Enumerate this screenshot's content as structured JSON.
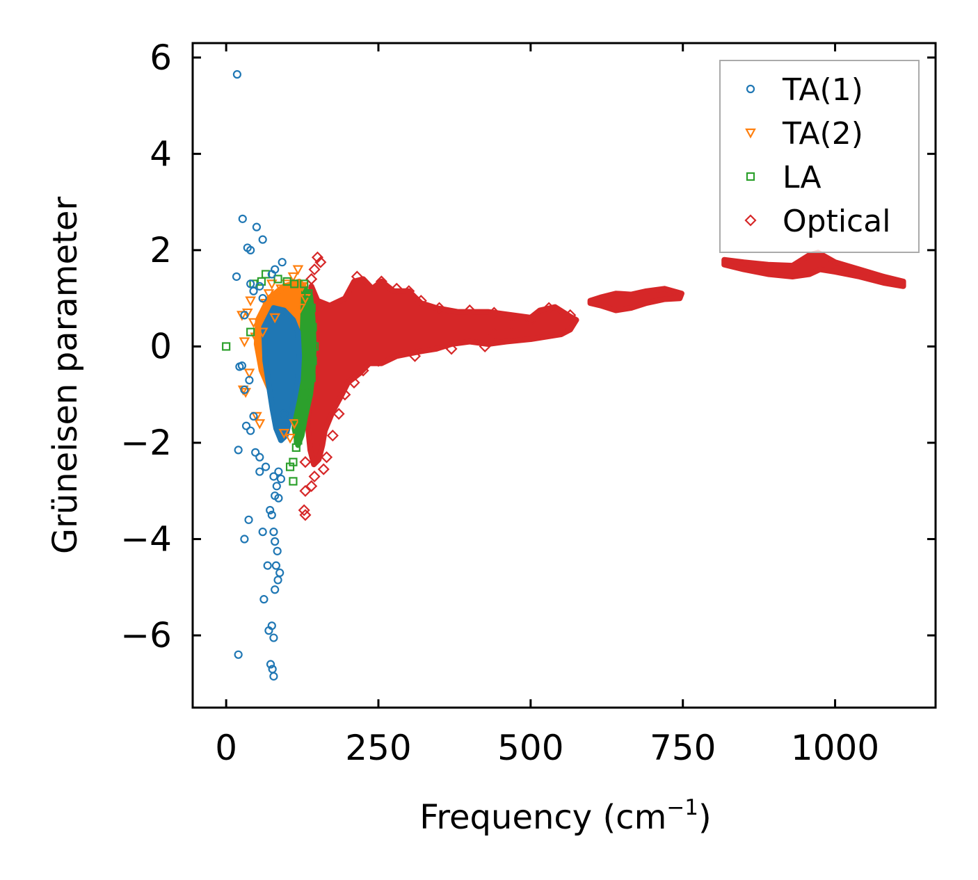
{
  "chart_data": {
    "type": "scatter",
    "title": "",
    "xlabel": "Frequency (cm",
    "xlabel_sup": "−1",
    "xlabel_close": ")",
    "ylabel": "Grüneisen parameter",
    "xlim": [
      -55,
      1165
    ],
    "ylim": [
      -7.5,
      6.3
    ],
    "xticks": [
      0,
      250,
      500,
      750,
      1000
    ],
    "yticks": [
      -6,
      -4,
      -2,
      0,
      2,
      4,
      6
    ],
    "xtick_labels": [
      "0",
      "250",
      "500",
      "750",
      "1000"
    ],
    "ytick_labels": [
      "−6",
      "−4",
      "−2",
      "0",
      "2",
      "4",
      "6"
    ],
    "grid": false,
    "legend_position": "top-right",
    "series": [
      {
        "name": "TA(1)",
        "marker": "circle",
        "color": "#1f77b4",
        "points": [
          [
            18,
            5.65
          ],
          [
            20,
            -6.4
          ],
          [
            27,
            2.65
          ],
          [
            35,
            2.05
          ],
          [
            40,
            2.0
          ],
          [
            50,
            2.48
          ],
          [
            60,
            2.22
          ],
          [
            17,
            1.45
          ],
          [
            22,
            -0.42
          ],
          [
            20,
            -2.15
          ],
          [
            33,
            -1.65
          ],
          [
            37,
            -3.6
          ],
          [
            30,
            -4.0
          ],
          [
            60,
            -3.85
          ],
          [
            62,
            -5.25
          ],
          [
            68,
            -4.55
          ],
          [
            70,
            -5.9
          ],
          [
            75,
            -5.8
          ],
          [
            78,
            -6.05
          ],
          [
            73,
            -6.6
          ],
          [
            76,
            -6.7
          ],
          [
            78,
            -6.85
          ],
          [
            80,
            -5.05
          ],
          [
            85,
            -4.85
          ],
          [
            88,
            -4.7
          ],
          [
            82,
            -4.55
          ],
          [
            84,
            -4.25
          ],
          [
            80,
            -4.05
          ],
          [
            78,
            -3.85
          ],
          [
            75,
            -3.5
          ],
          [
            72,
            -3.4
          ],
          [
            80,
            -3.1
          ],
          [
            86,
            -3.15
          ],
          [
            83,
            -2.9
          ],
          [
            78,
            -2.7
          ],
          [
            86,
            -2.6
          ],
          [
            90,
            -2.75
          ],
          [
            65,
            -2.5
          ],
          [
            55,
            -2.6
          ],
          [
            48,
            -2.2
          ],
          [
            55,
            -2.3
          ],
          [
            95,
            -1.4
          ],
          [
            92,
            1.75
          ],
          [
            80,
            1.6
          ],
          [
            75,
            1.5
          ],
          [
            40,
            1.3
          ],
          [
            45,
            1.15
          ],
          [
            55,
            1.25
          ],
          [
            60,
            1.0
          ],
          [
            30,
            0.65
          ],
          [
            26,
            -0.4
          ],
          [
            40,
            -1.75
          ],
          [
            30,
            -0.9
          ],
          [
            38,
            -0.7
          ],
          [
            45,
            -1.45
          ]
        ]
      },
      {
        "name": "TA(2)",
        "marker": "triangle-down",
        "color": "#ff7f0e",
        "points": [
          [
            28,
            -0.9
          ],
          [
            32,
            -0.95
          ],
          [
            35,
            0.7
          ],
          [
            40,
            0.95
          ],
          [
            45,
            0.5
          ],
          [
            38,
            -0.55
          ],
          [
            50,
            -1.45
          ],
          [
            55,
            -1.6
          ],
          [
            60,
            0.3
          ],
          [
            65,
            0.9
          ],
          [
            70,
            1.1
          ],
          [
            75,
            1.3
          ],
          [
            80,
            0.6
          ],
          [
            90,
            1.2
          ],
          [
            100,
            1.3
          ],
          [
            110,
            1.45
          ],
          [
            118,
            1.6
          ],
          [
            120,
            1.2
          ],
          [
            122,
            0.8
          ],
          [
            125,
            1.25
          ],
          [
            130,
            1.0
          ],
          [
            95,
            -1.8
          ],
          [
            105,
            -1.9
          ],
          [
            112,
            -1.6
          ],
          [
            30,
            0.1
          ],
          [
            26,
            0.65
          ],
          [
            48,
            0.2
          ]
        ]
      },
      {
        "name": "LA",
        "marker": "square",
        "color": "#2ca02c",
        "points": [
          [
            0,
            0.0
          ],
          [
            40,
            0.3
          ],
          [
            45,
            1.3
          ],
          [
            58,
            1.35
          ],
          [
            65,
            1.5
          ],
          [
            85,
            1.4
          ],
          [
            100,
            1.35
          ],
          [
            112,
            1.3
          ],
          [
            128,
            1.3
          ],
          [
            135,
            1.1
          ],
          [
            140,
            0.8
          ],
          [
            142,
            0.4
          ],
          [
            145,
            0.0
          ],
          [
            142,
            -0.3
          ],
          [
            140,
            -0.65
          ],
          [
            135,
            -0.95
          ],
          [
            130,
            -1.15
          ],
          [
            125,
            -1.5
          ],
          [
            120,
            -1.8
          ],
          [
            115,
            -2.1
          ],
          [
            110,
            -2.4
          ],
          [
            105,
            -2.5
          ],
          [
            110,
            -2.8
          ],
          [
            118,
            -1.95
          ],
          [
            128,
            -0.95
          ],
          [
            135,
            -0.2
          ]
        ]
      },
      {
        "name": "Optical",
        "marker": "diamond",
        "color": "#d62728",
        "points": [
          [
            150,
            1.85
          ],
          [
            155,
            1.75
          ],
          [
            145,
            1.6
          ],
          [
            140,
            1.4
          ],
          [
            130,
            -2.4
          ],
          [
            130,
            -3.0
          ],
          [
            140,
            -2.9
          ],
          [
            145,
            -2.7
          ],
          [
            128,
            -3.4
          ],
          [
            130,
            -3.5
          ],
          [
            160,
            -2.55
          ],
          [
            165,
            -2.3
          ],
          [
            175,
            -1.85
          ],
          [
            185,
            -1.4
          ],
          [
            195,
            -1.0
          ],
          [
            210,
            -0.75
          ],
          [
            225,
            -0.5
          ],
          [
            250,
            -0.3
          ],
          [
            310,
            -0.2
          ],
          [
            370,
            -0.05
          ],
          [
            425,
            0.0
          ],
          [
            440,
            0.25
          ],
          [
            215,
            1.45
          ],
          [
            255,
            1.35
          ],
          [
            280,
            1.2
          ],
          [
            300,
            1.15
          ],
          [
            320,
            0.95
          ],
          [
            350,
            0.8
          ],
          [
            400,
            0.75
          ],
          [
            440,
            0.7
          ],
          [
            530,
            0.8
          ],
          [
            565,
            0.65
          ],
          [
            500,
            0.55
          ],
          [
            470,
            0.45
          ]
        ]
      }
    ],
    "dense_regions": [
      {
        "series": "Optical",
        "outline": [
          [
            140,
            1.25
          ],
          [
            150,
            0.95
          ],
          [
            170,
            0.85
          ],
          [
            195,
            1.0
          ],
          [
            210,
            1.35
          ],
          [
            225,
            1.4
          ],
          [
            240,
            1.2
          ],
          [
            255,
            1.35
          ],
          [
            275,
            1.15
          ],
          [
            300,
            1.15
          ],
          [
            320,
            0.9
          ],
          [
            345,
            0.8
          ],
          [
            380,
            0.72
          ],
          [
            430,
            0.72
          ],
          [
            470,
            0.65
          ],
          [
            500,
            0.6
          ],
          [
            515,
            0.75
          ],
          [
            540,
            0.82
          ],
          [
            565,
            0.62
          ],
          [
            575,
            0.55
          ],
          [
            565,
            0.35
          ],
          [
            550,
            0.25
          ],
          [
            500,
            0.15
          ],
          [
            460,
            0.1
          ],
          [
            430,
            0.05
          ],
          [
            400,
            0.1
          ],
          [
            370,
            0.05
          ],
          [
            345,
            -0.05
          ],
          [
            320,
            -0.1
          ],
          [
            300,
            -0.15
          ],
          [
            280,
            -0.2
          ],
          [
            255,
            -0.35
          ],
          [
            235,
            -0.35
          ],
          [
            220,
            -0.55
          ],
          [
            200,
            -0.75
          ],
          [
            190,
            -1.0
          ],
          [
            175,
            -1.35
          ],
          [
            162,
            -1.75
          ],
          [
            158,
            -2.05
          ],
          [
            152,
            -2.35
          ],
          [
            144,
            -2.45
          ],
          [
            138,
            -2.15
          ],
          [
            134,
            -1.65
          ],
          [
            136,
            -0.95
          ],
          [
            133,
            -0.45
          ],
          [
            138,
            0.15
          ],
          [
            136,
            0.85
          ]
        ]
      },
      {
        "series": "Optical",
        "outline": [
          [
            598,
            0.95
          ],
          [
            615,
            1.02
          ],
          [
            640,
            1.1
          ],
          [
            665,
            1.08
          ],
          [
            690,
            1.15
          ],
          [
            720,
            1.2
          ],
          [
            748,
            1.1
          ],
          [
            745,
            1.0
          ],
          [
            720,
            0.98
          ],
          [
            690,
            0.9
          ],
          [
            665,
            0.8
          ],
          [
            640,
            0.75
          ],
          [
            615,
            0.85
          ],
          [
            598,
            0.9
          ]
        ]
      },
      {
        "series": "Optical",
        "outline": [
          [
            818,
            1.8
          ],
          [
            850,
            1.75
          ],
          [
            890,
            1.7
          ],
          [
            930,
            1.68
          ],
          [
            958,
            1.9
          ],
          [
            972,
            1.95
          ],
          [
            1000,
            1.75
          ],
          [
            1040,
            1.6
          ],
          [
            1080,
            1.45
          ],
          [
            1112,
            1.35
          ],
          [
            1112,
            1.25
          ],
          [
            1080,
            1.32
          ],
          [
            1040,
            1.45
          ],
          [
            1000,
            1.55
          ],
          [
            975,
            1.6
          ],
          [
            958,
            1.5
          ],
          [
            930,
            1.45
          ],
          [
            890,
            1.5
          ],
          [
            850,
            1.6
          ],
          [
            818,
            1.7
          ]
        ]
      },
      {
        "series": "TA(2)",
        "outline": [
          [
            52,
            0.55
          ],
          [
            70,
            1.0
          ],
          [
            95,
            1.25
          ],
          [
            120,
            1.35
          ],
          [
            130,
            1.2
          ],
          [
            132,
            0.6
          ],
          [
            130,
            -0.3
          ],
          [
            125,
            -0.9
          ],
          [
            118,
            -1.3
          ],
          [
            108,
            -1.55
          ],
          [
            95,
            -1.5
          ],
          [
            75,
            -1.0
          ],
          [
            58,
            -0.5
          ],
          [
            50,
            0.05
          ]
        ]
      },
      {
        "series": "LA",
        "outline": [
          [
            128,
            1.2
          ],
          [
            138,
            1.05
          ],
          [
            142,
            0.6
          ],
          [
            144,
            0.0
          ],
          [
            142,
            -0.55
          ],
          [
            138,
            -1.0
          ],
          [
            130,
            -1.45
          ],
          [
            124,
            -1.85
          ],
          [
            118,
            -2.05
          ],
          [
            112,
            -1.7
          ],
          [
            118,
            -1.0
          ],
          [
            124,
            -0.3
          ],
          [
            126,
            0.5
          ]
        ]
      },
      {
        "series": "TA(1)",
        "outline": [
          [
            62,
            0.4
          ],
          [
            78,
            0.8
          ],
          [
            95,
            0.75
          ],
          [
            110,
            0.55
          ],
          [
            118,
            0.3
          ],
          [
            120,
            -0.2
          ],
          [
            118,
            -0.7
          ],
          [
            112,
            -1.1
          ],
          [
            105,
            -1.5
          ],
          [
            98,
            -1.85
          ],
          [
            90,
            -1.95
          ],
          [
            82,
            -1.7
          ],
          [
            76,
            -1.3
          ],
          [
            70,
            -0.8
          ],
          [
            64,
            -0.3
          ]
        ]
      }
    ]
  }
}
